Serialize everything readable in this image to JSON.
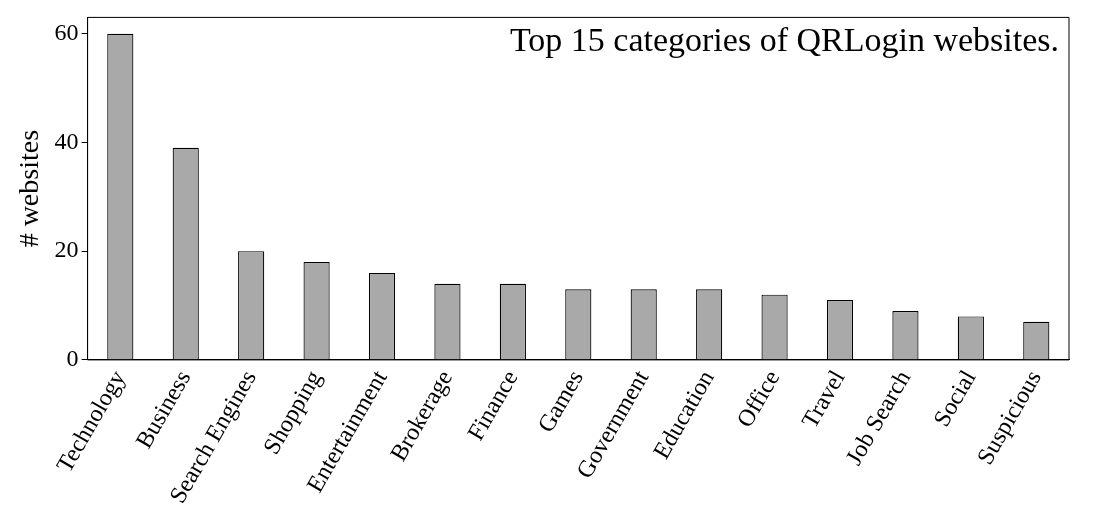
{
  "chart_data": {
    "type": "bar",
    "title": "Top 15 categories of QRLogin websites.",
    "ylabel": "# websites",
    "categories": [
      "Technology",
      "Business",
      "Search Engines",
      "Shopping",
      "Entertainment",
      "Brokerage",
      "Finance",
      "Games",
      "Government",
      "Education",
      "Office",
      "Travel",
      "Job Search",
      "Social",
      "Suspicious"
    ],
    "values": [
      60,
      39,
      20,
      18,
      16,
      14,
      14,
      13,
      13,
      13,
      12,
      11,
      9,
      8,
      7
    ],
    "color": "#a9a9a9",
    "ylim": [
      0,
      63
    ],
    "yticks": [
      0,
      20,
      40,
      60
    ],
    "grid": false,
    "legend": false
  }
}
